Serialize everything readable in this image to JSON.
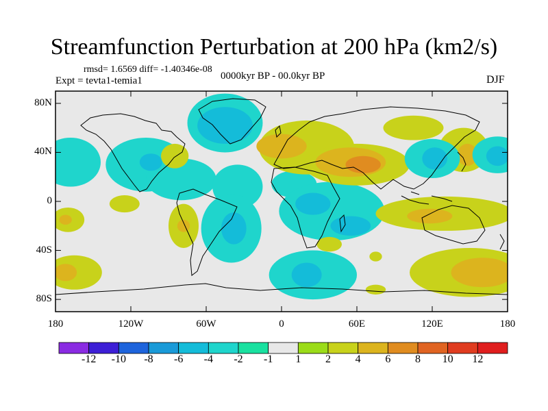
{
  "title": "Streamfunction Perturbation at 200 hPa (km2/s)",
  "stats": "rmsd= 1.6569 diff= -1.40346e-08",
  "experiment": "Expt = tevta1-temia1",
  "period": "0000kyr BP - 00.0kyr BP",
  "season": "DJF",
  "map": {
    "lat_ticks": [
      "80N",
      "40N",
      "0",
      "40S",
      "80S"
    ],
    "lon_ticks": [
      "180",
      "120W",
      "60W",
      "0",
      "60E",
      "120E",
      "180"
    ],
    "lat_values": [
      80,
      40,
      0,
      -40,
      -80
    ],
    "lon_values": [
      -180,
      -120,
      -60,
      0,
      60,
      120,
      180
    ],
    "background_color": "#e8e8e8",
    "features": [
      {
        "level": -4,
        "lon": -168,
        "lat": 32,
        "rx": 14,
        "ry": 13
      },
      {
        "level": -2,
        "lon": -168,
        "lat": 32,
        "rx": 24,
        "ry": 20
      },
      {
        "level": 2,
        "lon": -170,
        "lat": -15,
        "rx": 13,
        "ry": 10
      },
      {
        "level": 4,
        "lon": -172,
        "lat": -15,
        "rx": 5,
        "ry": 4
      },
      {
        "level": 2,
        "lon": -165,
        "lat": -58,
        "rx": 22,
        "ry": 14
      },
      {
        "level": 4,
        "lon": -172,
        "lat": -58,
        "rx": 9,
        "ry": 7
      },
      {
        "level": -2,
        "lon": -108,
        "lat": 30,
        "rx": 32,
        "ry": 22
      },
      {
        "level": -2,
        "lon": -80,
        "lat": 18,
        "rx": 28,
        "ry": 17
      },
      {
        "level": -4,
        "lon": -104,
        "lat": 32,
        "rx": 9,
        "ry": 7
      },
      {
        "level": 2,
        "lon": -85,
        "lat": 37,
        "rx": 11,
        "ry": 10
      },
      {
        "level": 2,
        "lon": -125,
        "lat": -2,
        "rx": 12,
        "ry": 7
      },
      {
        "level": 2,
        "lon": -78,
        "lat": -20,
        "rx": 12,
        "ry": 18
      },
      {
        "level": 4,
        "lon": -78,
        "lat": -20,
        "rx": 5,
        "ry": 5
      },
      {
        "level": -2,
        "lon": -45,
        "lat": 64,
        "rx": 30,
        "ry": 24
      },
      {
        "level": -4,
        "lon": -45,
        "lat": 62,
        "rx": 22,
        "ry": 15
      },
      {
        "level": -2,
        "lon": -35,
        "lat": 12,
        "rx": 20,
        "ry": 18
      },
      {
        "level": -2,
        "lon": -40,
        "lat": -22,
        "rx": 24,
        "ry": 28
      },
      {
        "level": -4,
        "lon": -38,
        "lat": -22,
        "rx": 10,
        "ry": 13
      },
      {
        "level": -2,
        "lon": 10,
        "lat": 14,
        "rx": 18,
        "ry": 11
      },
      {
        "level": -2,
        "lon": 40,
        "lat": -8,
        "rx": 42,
        "ry": 24
      },
      {
        "level": -4,
        "lon": 25,
        "lat": -2,
        "rx": 14,
        "ry": 9
      },
      {
        "level": -4,
        "lon": 55,
        "lat": -20,
        "rx": 16,
        "ry": 8
      },
      {
        "level": 2,
        "lon": 38,
        "lat": -35,
        "rx": 10,
        "ry": 6
      },
      {
        "level": 2,
        "lon": 20,
        "lat": 44,
        "rx": 38,
        "ry": 22
      },
      {
        "level": 2,
        "lon": 60,
        "lat": 30,
        "rx": 42,
        "ry": 17
      },
      {
        "level": 4,
        "lon": 55,
        "lat": 32,
        "rx": 28,
        "ry": 12
      },
      {
        "level": 4,
        "lon": 0,
        "lat": 45,
        "rx": 20,
        "ry": 10
      },
      {
        "level": 6,
        "lon": 65,
        "lat": 30,
        "rx": 14,
        "ry": 7
      },
      {
        "level": 2,
        "lon": 105,
        "lat": 60,
        "rx": 24,
        "ry": 10
      },
      {
        "level": 2,
        "lon": 145,
        "lat": 42,
        "rx": 20,
        "ry": 18
      },
      {
        "level": 4,
        "lon": 148,
        "lat": 38,
        "rx": 8,
        "ry": 9
      },
      {
        "level": -2,
        "lon": 120,
        "lat": 35,
        "rx": 22,
        "ry": 16
      },
      {
        "level": -4,
        "lon": 122,
        "lat": 35,
        "rx": 10,
        "ry": 9
      },
      {
        "level": -2,
        "lon": 172,
        "lat": 38,
        "rx": 20,
        "ry": 15
      },
      {
        "level": -4,
        "lon": 172,
        "lat": 37,
        "rx": 9,
        "ry": 8
      },
      {
        "level": 2,
        "lon": 130,
        "lat": -10,
        "rx": 55,
        "ry": 14
      },
      {
        "level": 4,
        "lon": 118,
        "lat": -12,
        "rx": 18,
        "ry": 6
      },
      {
        "level": -2,
        "lon": 25,
        "lat": -60,
        "rx": 35,
        "ry": 20
      },
      {
        "level": -4,
        "lon": 20,
        "lat": -60,
        "rx": 12,
        "ry": 10
      },
      {
        "level": 2,
        "lon": 150,
        "lat": -58,
        "rx": 48,
        "ry": 20
      },
      {
        "level": 4,
        "lon": 160,
        "lat": -58,
        "rx": 25,
        "ry": 12
      },
      {
        "level": 2,
        "lon": 75,
        "lat": -72,
        "rx": 8,
        "ry": 4
      },
      {
        "level": 2,
        "lon": 75,
        "lat": -45,
        "rx": 5,
        "ry": 4
      }
    ]
  },
  "colorbar": {
    "labels": [
      "-12",
      "-10",
      "-8",
      "-6",
      "-4",
      "-2",
      "-1",
      "1",
      "2",
      "4",
      "6",
      "8",
      "10",
      "12"
    ],
    "colors": [
      "#8a2be2",
      "#3d1fd6",
      "#1e64dc",
      "#1a9ad8",
      "#14bcd9",
      "#1fd5cc",
      "#1ae1a0",
      "#e8e8e8",
      "#9bdc19",
      "#c8d21b",
      "#dcb41e",
      "#e08c20",
      "#e06422",
      "#e03c20",
      "#e01e1e"
    ]
  }
}
